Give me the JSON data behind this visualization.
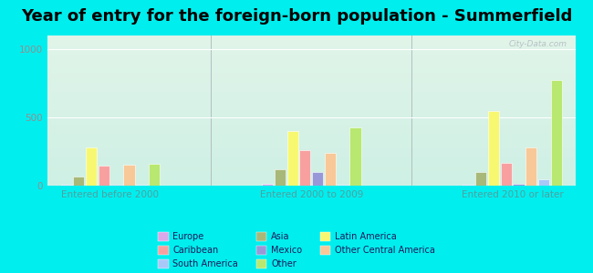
{
  "title": "Year of entry for the foreign-born population - Summerfield",
  "groups": [
    "Entered before 2000",
    "Entered 2000 to 2009",
    "Entered 2010 or later"
  ],
  "bar_labels": [
    "Europe",
    "Asia",
    "Latin America",
    "Caribbean",
    "Mexico",
    "Other Central America",
    "South America",
    "Other"
  ],
  "bar_colors": [
    "#d8a8e8",
    "#a8b878",
    "#f8f870",
    "#f8a0a0",
    "#9898d8",
    "#f8c898",
    "#a8c8f8",
    "#b8e870"
  ],
  "values": [
    [
      5,
      70,
      280,
      150,
      5,
      155,
      10,
      160
    ],
    [
      15,
      120,
      400,
      260,
      100,
      240,
      10,
      430
    ],
    [
      10,
      100,
      550,
      170,
      15,
      280,
      50,
      775
    ]
  ],
  "ylim": [
    0,
    1100
  ],
  "yticks": [
    0,
    500,
    1000
  ],
  "background_color": "#00eeee",
  "plot_bg": "#d8f0e0",
  "title_fontsize": 13,
  "group_label_color": "#50a0a0",
  "watermark": "City-Data.com",
  "legend_order": [
    0,
    3,
    6,
    1,
    4,
    7,
    2,
    5
  ],
  "legend_labels": [
    "Europe",
    "Caribbean",
    "South America",
    "Asia",
    "Mexico",
    "Other",
    "Latin America",
    "Other Central America"
  ],
  "legend_colors": [
    "#d8a8e8",
    "#f8a0a0",
    "#a8c8f8",
    "#a8b878",
    "#9898d8",
    "#b8e870",
    "#f8f870",
    "#f8c898"
  ]
}
